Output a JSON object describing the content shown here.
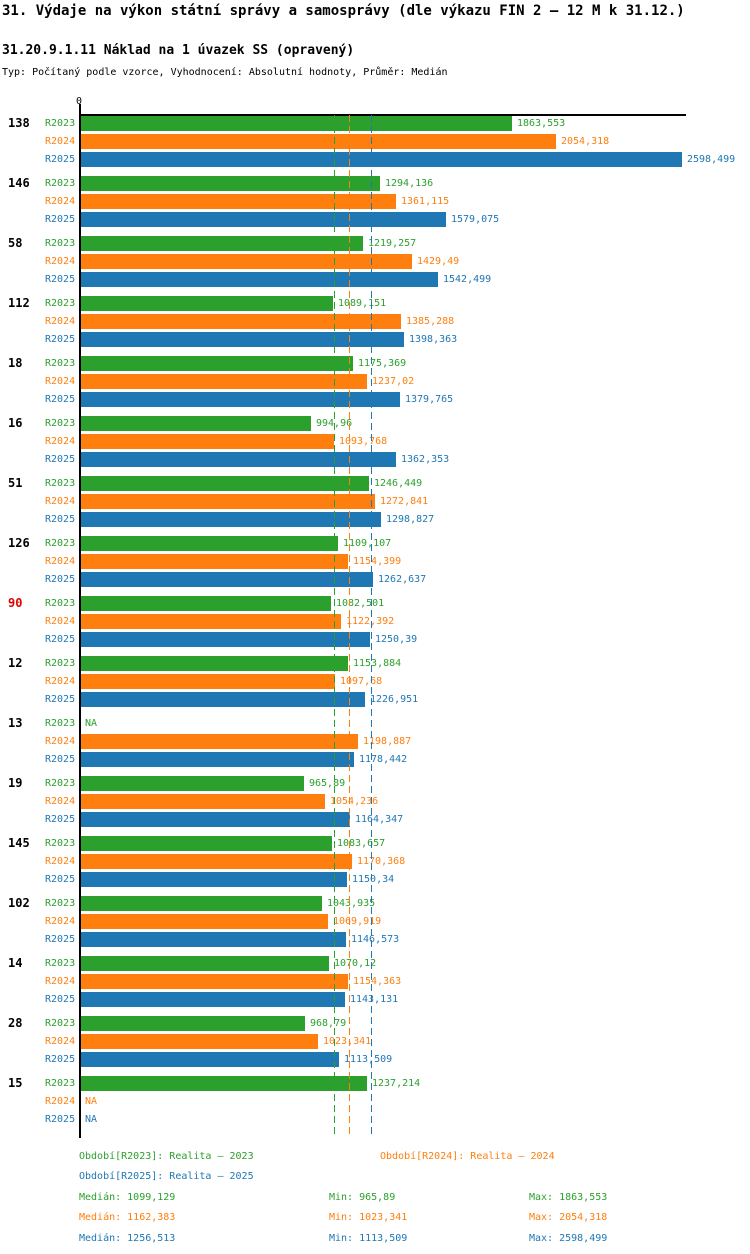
{
  "page": {
    "title": "31. Výdaje na výkon státní správy a samosprávy (dle výkazu FIN 2 – 12 M k 31.12.)",
    "subtitle": "31.20.9.1.11 Náklad na 1 úvazek SS (opravený)",
    "type_line": "Typ: Počítaný podle vzorce, Vyhodnocení: Absolutní hodnoty, Průměr: Medián"
  },
  "colors": {
    "r2023_green": "#2ca02c",
    "r2024_orange": "#ff7f0e",
    "r2025_blue": "#1f77b4",
    "highlight_red": "#e00000",
    "axis": "#000000"
  },
  "chart_data": {
    "type": "bar",
    "orientation": "horizontal",
    "x_axis": {
      "min": 0,
      "max": 2620,
      "zero_tick_label": "0",
      "grid": false
    },
    "na_label": "NA",
    "series": [
      {
        "name": "R2023",
        "color": "#2ca02c",
        "median": 1099.129
      },
      {
        "name": "R2024",
        "color": "#ff7f0e",
        "median": 1162.383
      },
      {
        "name": "R2025",
        "color": "#1f77b4",
        "median": 1256.513
      }
    ],
    "groups": [
      {
        "label": "138",
        "highlight": false,
        "values": [
          1863.553,
          2054.318,
          2598.499
        ],
        "display": [
          "1863,553",
          "2054,318",
          "2598,499"
        ]
      },
      {
        "label": "146",
        "highlight": false,
        "values": [
          1294.136,
          1361.115,
          1579.075
        ],
        "display": [
          "1294,136",
          "1361,115",
          "1579,075"
        ]
      },
      {
        "label": "58",
        "highlight": false,
        "values": [
          1219.257,
          1429.49,
          1542.499
        ],
        "display": [
          "1219,257",
          "1429,49",
          "1542,499"
        ]
      },
      {
        "label": "112",
        "highlight": false,
        "values": [
          1089.151,
          1385.288,
          1398.363
        ],
        "display": [
          "1089,151",
          "1385,288",
          "1398,363"
        ]
      },
      {
        "label": "18",
        "highlight": false,
        "values": [
          1175.369,
          1237.02,
          1379.765
        ],
        "display": [
          "1175,369",
          "1237,02",
          "1379,765"
        ]
      },
      {
        "label": "16",
        "highlight": false,
        "values": [
          994.96,
          1093.768,
          1362.353
        ],
        "display": [
          "994,96",
          "1093,768",
          "1362,353"
        ]
      },
      {
        "label": "51",
        "highlight": false,
        "values": [
          1246.449,
          1272.841,
          1298.827
        ],
        "display": [
          "1246,449",
          "1272,841",
          "1298,827"
        ]
      },
      {
        "label": "126",
        "highlight": false,
        "values": [
          1109.107,
          1154.399,
          1262.637
        ],
        "display": [
          "1109,107",
          "1154,399",
          "1262,637"
        ]
      },
      {
        "label": "90",
        "highlight": true,
        "values": [
          1082.501,
          1122.392,
          1250.39
        ],
        "display": [
          "1082,501",
          "1122,392",
          "1250,39"
        ]
      },
      {
        "label": "12",
        "highlight": false,
        "values": [
          1153.884,
          1097.68,
          1226.951
        ],
        "display": [
          "1153,884",
          "1097,68",
          "1226,951"
        ]
      },
      {
        "label": "13",
        "highlight": false,
        "values": [
          null,
          1198.887,
          1178.442
        ],
        "display": [
          "NA",
          "1198,887",
          "1178,442"
        ]
      },
      {
        "label": "19",
        "highlight": false,
        "values": [
          965.89,
          1054.236,
          1164.347
        ],
        "display": [
          "965,89",
          "1054,236",
          "1164,347"
        ]
      },
      {
        "label": "145",
        "highlight": false,
        "values": [
          1083.657,
          1170.368,
          1150.34
        ],
        "display": [
          "1083,657",
          "1170,368",
          "1150,34"
        ]
      },
      {
        "label": "102",
        "highlight": false,
        "values": [
          1043.935,
          1069.919,
          1146.573
        ],
        "display": [
          "1043,935",
          "1069,919",
          "1146,573"
        ]
      },
      {
        "label": "14",
        "highlight": false,
        "values": [
          1070.12,
          1154.363,
          1143.131
        ],
        "display": [
          "1070,12",
          "1154,363",
          "1143,131"
        ]
      },
      {
        "label": "28",
        "highlight": false,
        "values": [
          968.79,
          1023.341,
          1113.509
        ],
        "display": [
          "968,79",
          "1023,341",
          "1113,509"
        ]
      },
      {
        "label": "15",
        "highlight": false,
        "values": [
          1237.214,
          null,
          null
        ],
        "display": [
          "1237,214",
          "NA",
          "NA"
        ]
      }
    ],
    "legend_position": "bottom"
  },
  "legend": {
    "r2023": "Období[R2023]: Realita – 2023",
    "r2024": "Období[R2024]: Realita – 2024",
    "r2025": "Období[R2025]: Realita – 2025"
  },
  "stats": [
    {
      "median": "Medián: 1099,129",
      "min": "Min: 965,89",
      "max": "Max: 1863,553"
    },
    {
      "median": "Medián: 1162,383",
      "min": "Min: 1023,341",
      "max": "Max: 2054,318"
    },
    {
      "median": "Medián: 1256,513",
      "min": "Min: 1113,509",
      "max": "Max: 2598,499"
    }
  ]
}
